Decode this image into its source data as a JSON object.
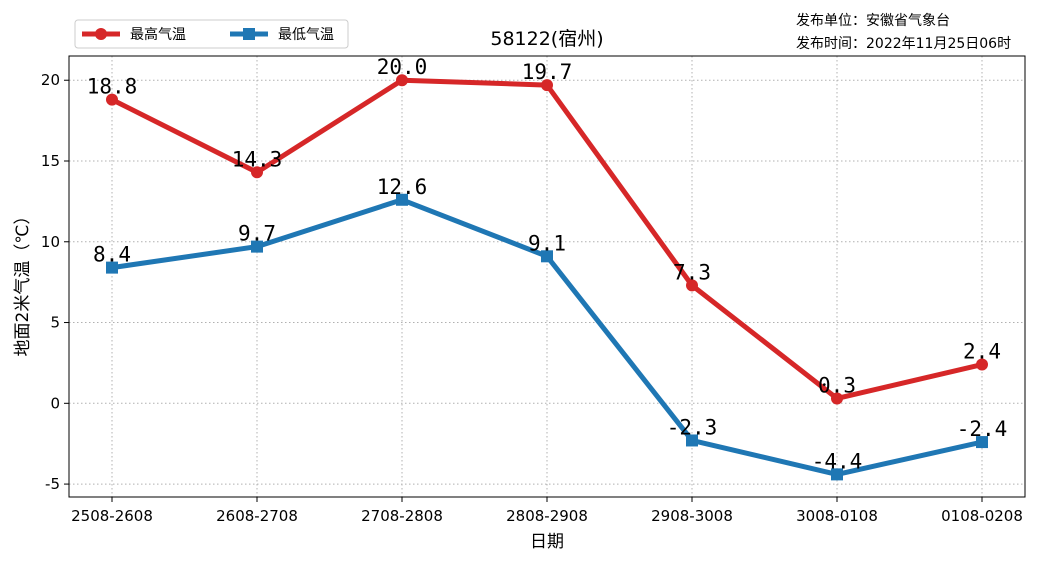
{
  "info": {
    "publisher": "发布单位：安徽省气象台",
    "publish_time": "发布时间：2022年11月25日06时"
  },
  "colors": {
    "high": "#d62728",
    "low": "#1f77b4"
  },
  "chart_data": {
    "type": "line",
    "title": "58122(宿州)",
    "xlabel": "日期",
    "ylabel": "地面2米气温（℃）",
    "categories": [
      "2508-2608",
      "2608-2708",
      "2708-2808",
      "2808-2908",
      "2908-3008",
      "3008-0108",
      "0108-0208"
    ],
    "series": [
      {
        "name": "最高气温",
        "values": [
          18.8,
          14.3,
          20.0,
          19.7,
          7.3,
          0.3,
          2.4
        ],
        "labels": [
          "18.8",
          "14.3",
          "20.0",
          "19.7",
          "7.3",
          "0.3",
          "2.4"
        ],
        "marker": "circle"
      },
      {
        "name": "最低气温",
        "values": [
          8.4,
          9.7,
          12.6,
          9.1,
          -2.3,
          -4.4,
          -2.4
        ],
        "labels": [
          "8.4",
          "9.7",
          "12.6",
          "9.1",
          "-2.3",
          "-4.4",
          "-2.4"
        ],
        "marker": "square"
      }
    ],
    "yticks": [
      "-5",
      "0",
      "5",
      "10",
      "15",
      "20"
    ],
    "ylim": [
      -5.8,
      21.5
    ],
    "grid": true,
    "legend": "top-left"
  }
}
